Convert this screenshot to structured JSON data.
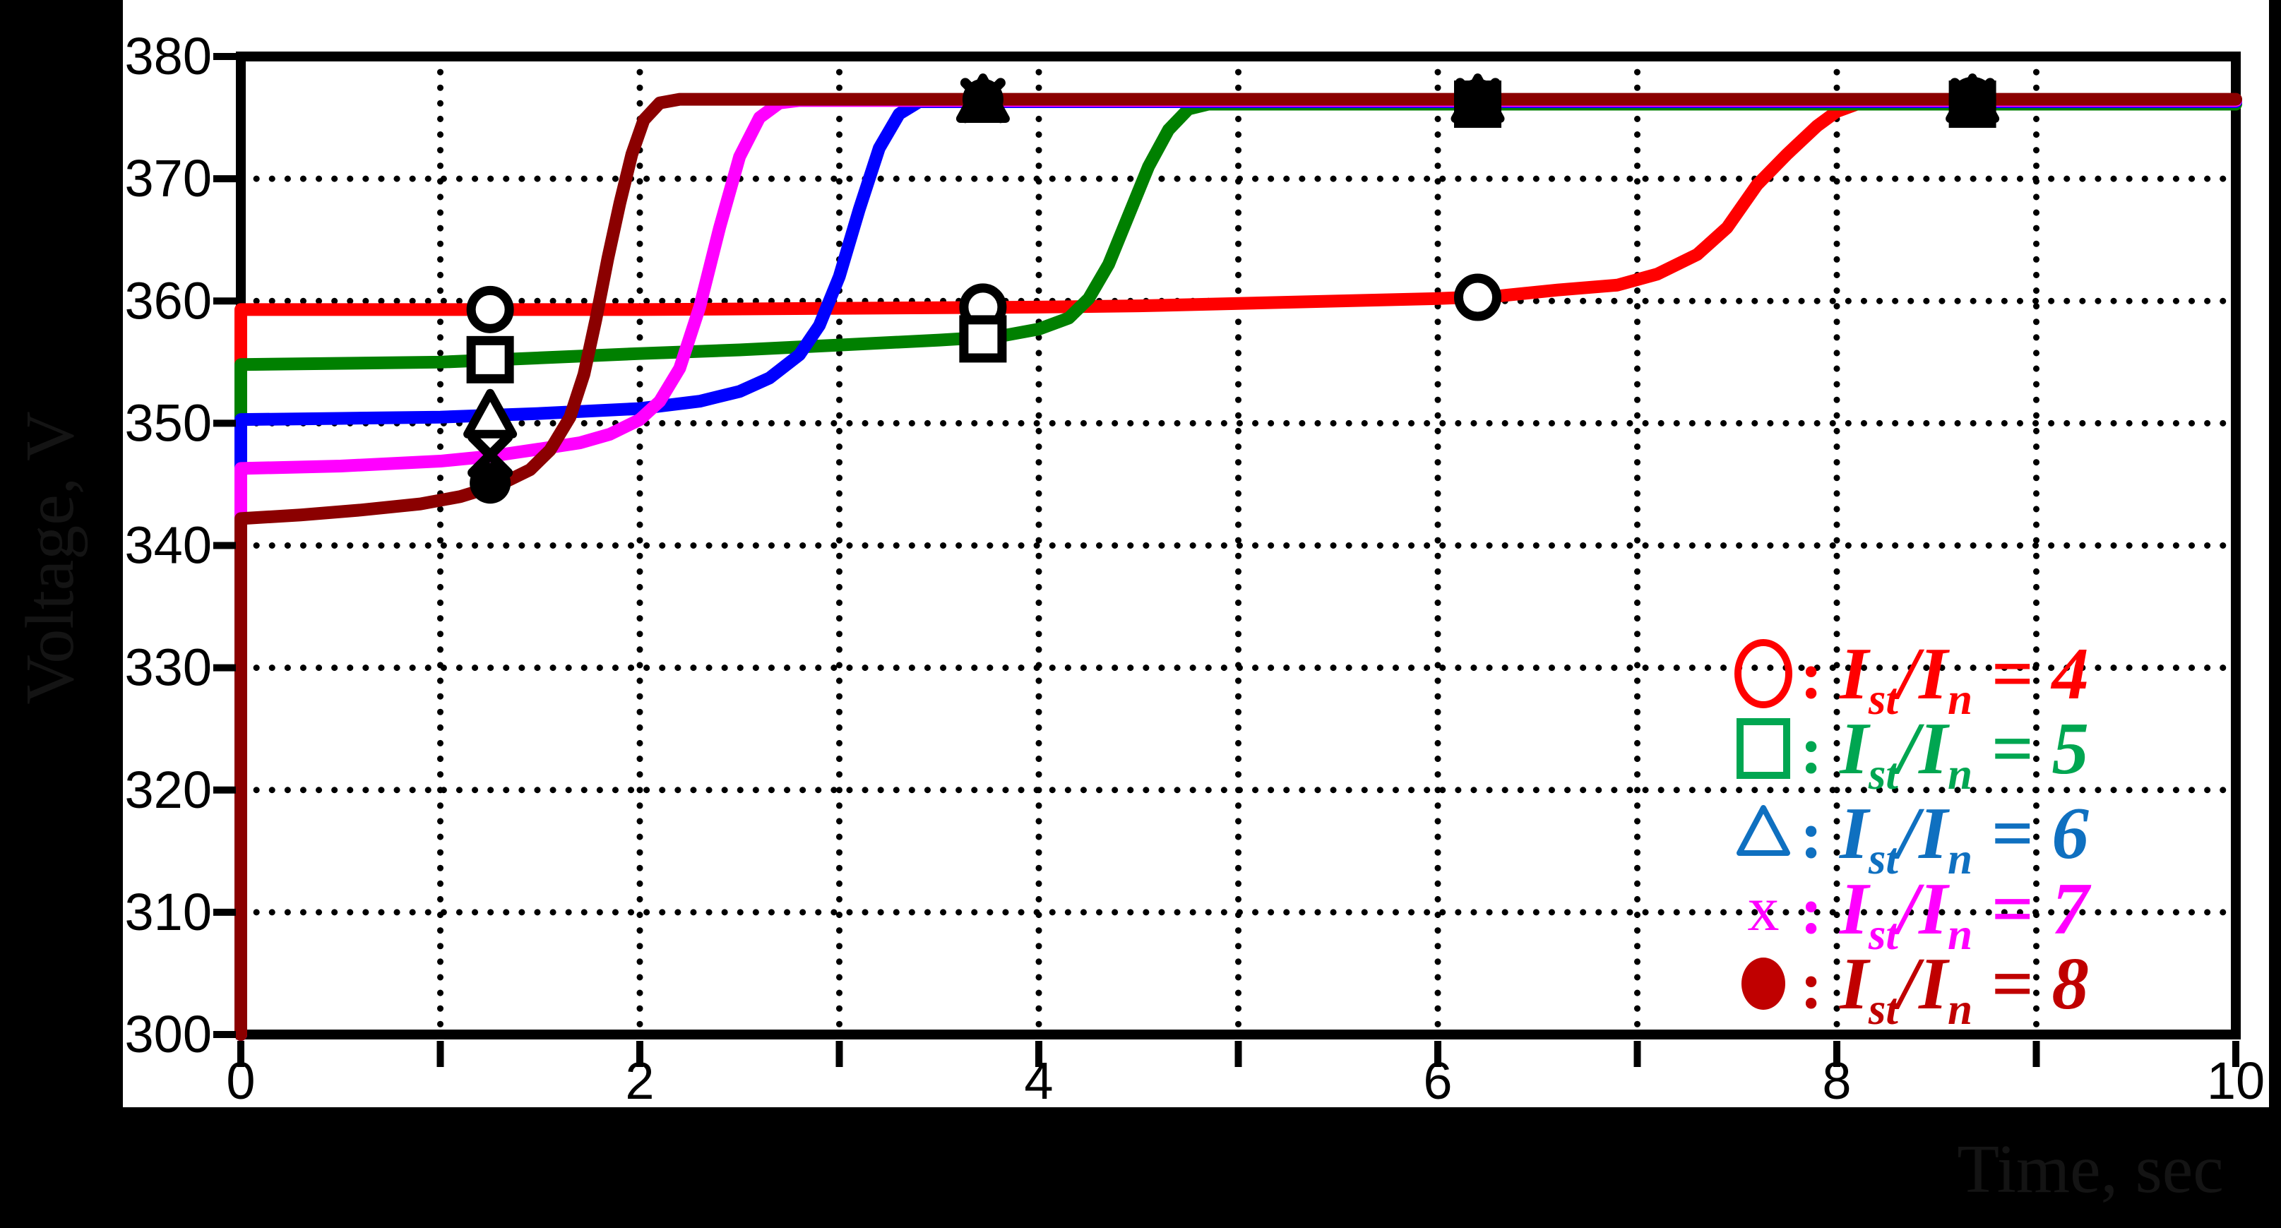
{
  "figure": {
    "background": "#000000",
    "panel_background": "#ffffff",
    "axis_color": "#000000",
    "grid_style": "dotted"
  },
  "axes": {
    "x": {
      "label": "Time, sec",
      "min": 0,
      "max": 10,
      "tick_positions": [
        0,
        1,
        2,
        3,
        4,
        5,
        6,
        7,
        8,
        9,
        10
      ],
      "labeled_ticks": [
        {
          "value": 0,
          "label": "0"
        },
        {
          "value": 2,
          "label": "2"
        },
        {
          "value": 4,
          "label": "4"
        },
        {
          "value": 6,
          "label": "6"
        },
        {
          "value": 8,
          "label": "8"
        },
        {
          "value": 10,
          "label": "10"
        }
      ],
      "gridlines": [
        1,
        2,
        3,
        4,
        5,
        6,
        7,
        8,
        9
      ]
    },
    "y": {
      "label": "Voltage, V",
      "min": 300,
      "max": 380,
      "labeled_ticks": [
        {
          "value": 300,
          "label": "300"
        },
        {
          "value": 310,
          "label": "310"
        },
        {
          "value": 320,
          "label": "320"
        },
        {
          "value": 330,
          "label": "330"
        },
        {
          "value": 340,
          "label": "340"
        },
        {
          "value": 350,
          "label": "350"
        },
        {
          "value": 360,
          "label": "360"
        },
        {
          "value": 370,
          "label": "370"
        },
        {
          "value": 380,
          "label": "380"
        }
      ],
      "gridlines": [
        310,
        320,
        330,
        340,
        350,
        360,
        370
      ]
    }
  },
  "chart_data": {
    "type": "line",
    "title": "",
    "xlabel": "Time, sec",
    "ylabel": "Voltage, V",
    "xlim": [
      0,
      10
    ],
    "ylim": [
      300,
      380
    ],
    "grid": "dotted",
    "legend_position": "inside-bottom-right",
    "series": [
      {
        "name": "I_st/I_n = 4",
        "color": "#ff0000",
        "marker": "circle-open",
        "points": [
          [
            0,
            300
          ],
          [
            0,
            359.3
          ],
          [
            0.5,
            359.3
          ],
          [
            1,
            359.3
          ],
          [
            2,
            359.3
          ],
          [
            3,
            359.4
          ],
          [
            4,
            359.5
          ],
          [
            4.5,
            359.6
          ],
          [
            5,
            359.8
          ],
          [
            5.5,
            360.0
          ],
          [
            6,
            360.2
          ],
          [
            6.3,
            360.4
          ],
          [
            6.6,
            360.9
          ],
          [
            6.9,
            361.3
          ],
          [
            7.1,
            362.2
          ],
          [
            7.3,
            363.8
          ],
          [
            7.45,
            366.0
          ],
          [
            7.6,
            369.5
          ],
          [
            7.75,
            372.0
          ],
          [
            7.9,
            374.3
          ],
          [
            8.0,
            375.5
          ],
          [
            8.1,
            376.1
          ],
          [
            8.2,
            376.4
          ],
          [
            10,
            376.4
          ]
        ],
        "marker_points": [
          [
            1.25,
            359.3
          ],
          [
            3.72,
            359.5
          ],
          [
            6.2,
            360.3
          ],
          [
            8.68,
            376.4
          ]
        ]
      },
      {
        "name": "I_st/I_n = 5",
        "color": "#008000",
        "marker": "square-open",
        "points": [
          [
            0,
            300
          ],
          [
            0,
            354.8
          ],
          [
            1,
            355.0
          ],
          [
            2,
            355.7
          ],
          [
            2.5,
            356.0
          ],
          [
            3,
            356.4
          ],
          [
            3.5,
            356.8
          ],
          [
            3.8,
            357.1
          ],
          [
            4.0,
            357.7
          ],
          [
            4.15,
            358.6
          ],
          [
            4.25,
            360.2
          ],
          [
            4.35,
            363.0
          ],
          [
            4.45,
            367.0
          ],
          [
            4.55,
            371.0
          ],
          [
            4.65,
            374.0
          ],
          [
            4.75,
            375.7
          ],
          [
            4.85,
            376.1
          ],
          [
            10,
            376.1
          ]
        ],
        "marker_points": [
          [
            1.25,
            355.2
          ],
          [
            3.72,
            356.9
          ],
          [
            6.2,
            376.1
          ],
          [
            8.68,
            376.1
          ]
        ]
      },
      {
        "name": "I_st/I_n = 6",
        "color": "#0000ff",
        "marker": "triangle-open",
        "points": [
          [
            0,
            300
          ],
          [
            0,
            350.3
          ],
          [
            0.5,
            350.4
          ],
          [
            1,
            350.5
          ],
          [
            1.5,
            350.8
          ],
          [
            2,
            351.2
          ],
          [
            2.3,
            351.8
          ],
          [
            2.5,
            352.6
          ],
          [
            2.65,
            353.7
          ],
          [
            2.8,
            355.6
          ],
          [
            2.9,
            358.0
          ],
          [
            3.0,
            362.0
          ],
          [
            3.1,
            367.5
          ],
          [
            3.2,
            372.5
          ],
          [
            3.3,
            375.3
          ],
          [
            3.4,
            376.3
          ],
          [
            10,
            376.3
          ]
        ],
        "marker_points": [
          [
            1.25,
            350.5
          ],
          [
            3.72,
            376.3
          ],
          [
            6.2,
            376.3
          ],
          [
            8.68,
            376.3
          ]
        ]
      },
      {
        "name": "I_st/I_n = 7",
        "color": "#ff00ff",
        "marker": "x",
        "points": [
          [
            0,
            300
          ],
          [
            0,
            346.3
          ],
          [
            0.5,
            346.5
          ],
          [
            1,
            346.9
          ],
          [
            1.25,
            347.3
          ],
          [
            1.5,
            347.9
          ],
          [
            1.7,
            348.4
          ],
          [
            1.85,
            349.1
          ],
          [
            2.0,
            350.3
          ],
          [
            2.1,
            351.8
          ],
          [
            2.2,
            354.5
          ],
          [
            2.3,
            359.5
          ],
          [
            2.4,
            366.0
          ],
          [
            2.5,
            371.8
          ],
          [
            2.6,
            375.0
          ],
          [
            2.7,
            376.2
          ],
          [
            2.8,
            376.4
          ],
          [
            10,
            376.4
          ]
        ],
        "marker_points": [
          [
            1.25,
            347.4
          ],
          [
            3.72,
            376.4
          ],
          [
            6.2,
            376.4
          ],
          [
            8.68,
            376.4
          ]
        ]
      },
      {
        "name": "I_st/I_n = 8",
        "color": "#8b0000",
        "marker": "circle-filled",
        "points": [
          [
            0,
            300
          ],
          [
            0,
            342.2
          ],
          [
            0.3,
            342.5
          ],
          [
            0.6,
            342.9
          ],
          [
            0.9,
            343.4
          ],
          [
            1.1,
            344.0
          ],
          [
            1.3,
            345.0
          ],
          [
            1.45,
            346.2
          ],
          [
            1.55,
            347.8
          ],
          [
            1.65,
            350.5
          ],
          [
            1.72,
            354.0
          ],
          [
            1.78,
            358.5
          ],
          [
            1.84,
            363.5
          ],
          [
            1.9,
            368.0
          ],
          [
            1.96,
            372.0
          ],
          [
            2.02,
            374.8
          ],
          [
            2.1,
            376.2
          ],
          [
            2.2,
            376.5
          ],
          [
            10,
            376.5
          ]
        ],
        "marker_points": [
          [
            1.25,
            345.1
          ],
          [
            3.72,
            376.5
          ],
          [
            6.2,
            376.5
          ],
          [
            8.68,
            376.5
          ]
        ]
      }
    ]
  },
  "legend": {
    "rows": [
      {
        "symbol": "circle-open",
        "color": "#ff0000",
        "colon": ":",
        "parts": [
          {
            "t": "I"
          },
          {
            "t": "st",
            "sub": true
          },
          {
            "t": "/I"
          },
          {
            "t": "n",
            "sub": true
          },
          {
            "t": " = 4"
          }
        ]
      },
      {
        "symbol": "square-open",
        "color": "#00a651",
        "colon": ":",
        "parts": [
          {
            "t": "I"
          },
          {
            "t": "st",
            "sub": true
          },
          {
            "t": "/I"
          },
          {
            "t": "n",
            "sub": true
          },
          {
            "t": " = 5"
          }
        ]
      },
      {
        "symbol": "triangle-open",
        "color": "#0f70c0",
        "colon": ":",
        "parts": [
          {
            "t": "I"
          },
          {
            "t": "st",
            "sub": true
          },
          {
            "t": "/I"
          },
          {
            "t": "n",
            "sub": true
          },
          {
            "t": " = 6"
          }
        ]
      },
      {
        "symbol": "x",
        "color": "#ff00ff",
        "colon": ":",
        "parts": [
          {
            "t": "I"
          },
          {
            "t": "st",
            "sub": true
          },
          {
            "t": "/I"
          },
          {
            "t": "n",
            "sub": true
          },
          {
            "t": " = 7"
          }
        ]
      },
      {
        "symbol": "circle-filled",
        "color": "#c00000",
        "colon": ":",
        "parts": [
          {
            "t": "I"
          },
          {
            "t": "st",
            "sub": true
          },
          {
            "t": "/I"
          },
          {
            "t": "n",
            "sub": true
          },
          {
            "t": " = 8"
          }
        ]
      }
    ]
  },
  "marker_color_on_plot": "#000000"
}
